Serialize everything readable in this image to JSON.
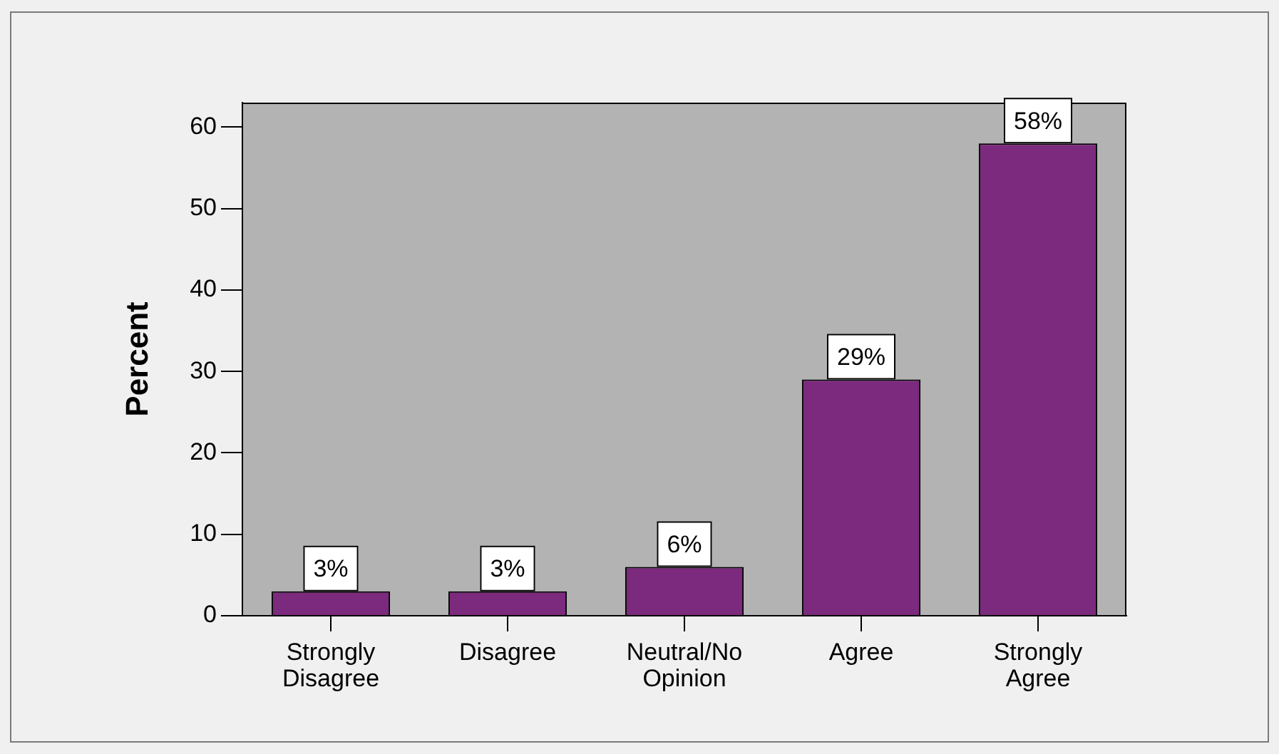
{
  "chart_data": {
    "type": "bar",
    "ylabel": "Percent",
    "categories": [
      "Strongly Disagree",
      "Disagree",
      "Neutral/No Opinion",
      "Agree",
      "Strongly Agree"
    ],
    "values": [
      3,
      3,
      6,
      29,
      58
    ],
    "value_labels": [
      "3%",
      "3%",
      "6%",
      "29%",
      "58%"
    ],
    "color": "#7b2a7d",
    "ylim": [
      0,
      63
    ],
    "yticks": [
      0,
      10,
      20,
      30,
      40,
      50,
      60
    ],
    "grid": false,
    "legend": false
  }
}
